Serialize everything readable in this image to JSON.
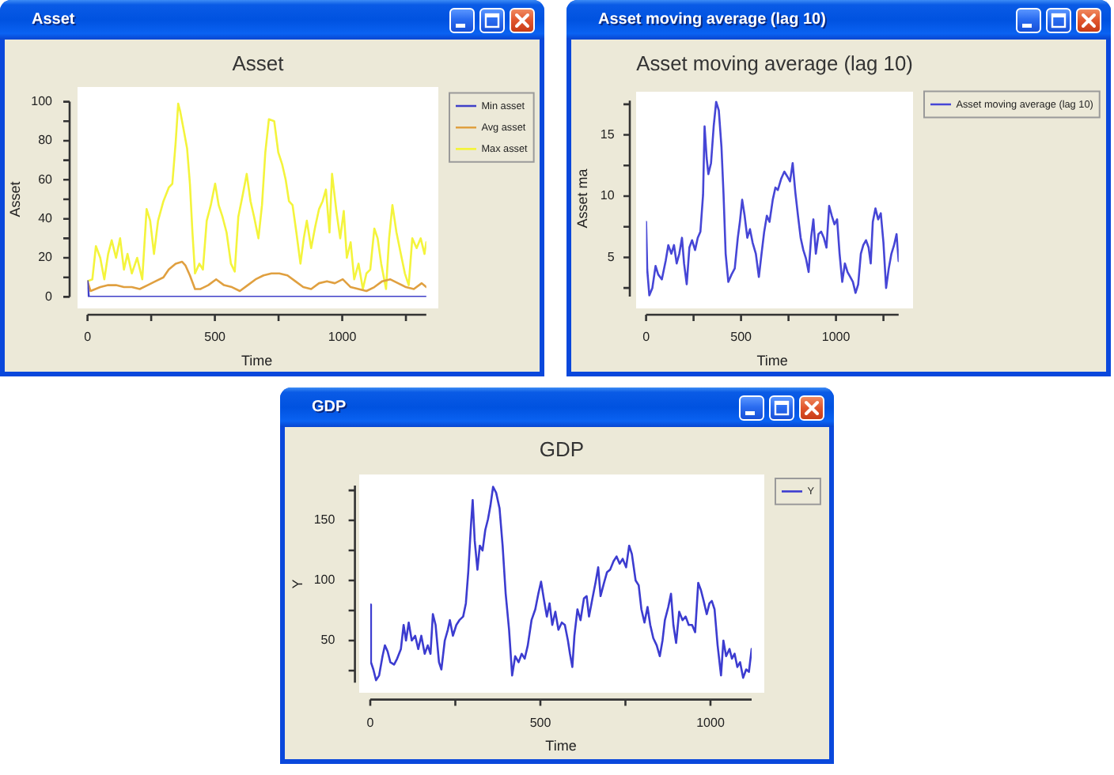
{
  "chart_data": [
    {
      "type": "line",
      "title": "Asset",
      "xlabel": "Time",
      "ylabel": "Asset",
      "xlim": [
        0,
        1330
      ],
      "xticks": [
        0,
        {
          "value": 250,
          "label": null
        },
        500,
        {
          "value": 750,
          "label": null
        },
        1000,
        {
          "value": 1250,
          "label": null
        }
      ],
      "ylim": [
        0,
        100
      ],
      "yticks": [
        0,
        {
          "value": 10,
          "label": null
        },
        20,
        {
          "value": 30,
          "label": null
        },
        40,
        {
          "value": 50,
          "label": null
        },
        60,
        {
          "value": 70,
          "label": null
        },
        80,
        {
          "value": 90,
          "label": null
        },
        100
      ],
      "series": [
        {
          "name": "Min asset",
          "color": "#4040c8",
          "x": [
            0,
            5,
            1330
          ],
          "values": [
            8,
            0,
            0
          ]
        },
        {
          "name": "Avg asset",
          "color": "#e0a040",
          "x": [
            0,
            12,
            50,
            81,
            112,
            143,
            174,
            205,
            236,
            267,
            298,
            319,
            346,
            371,
            385,
            402,
            422,
            443,
            474,
            505,
            536,
            567,
            598,
            629,
            660,
            691,
            722,
            753,
            785,
            816,
            847,
            878,
            909,
            940,
            971,
            1002,
            1033,
            1064,
            1095,
            1126,
            1157,
            1188,
            1219,
            1250,
            1281,
            1312,
            1330
          ],
          "values": [
            8,
            3,
            5,
            6,
            6,
            5,
            5,
            4,
            6,
            8,
            10,
            14,
            17,
            18,
            16,
            11,
            4,
            4,
            6,
            9,
            6,
            5,
            3,
            6,
            9,
            11,
            12,
            12,
            11,
            8,
            5,
            4,
            7,
            8,
            7,
            9,
            5,
            4,
            3,
            5,
            8,
            9,
            7,
            5,
            4,
            7,
            5
          ]
        },
        {
          "name": "Max asset",
          "color": "#f4f43c",
          "x": [
            0,
            19,
            33,
            50,
            66,
            81,
            95,
            112,
            128,
            143,
            157,
            174,
            195,
            215,
            232,
            246,
            261,
            277,
            298,
            319,
            333,
            346,
            356,
            364,
            377,
            391,
            402,
            412,
            422,
            439,
            453,
            468,
            484,
            501,
            515,
            530,
            546,
            563,
            578,
            592,
            609,
            625,
            640,
            654,
            671,
            685,
            698,
            712,
            733,
            749,
            764,
            778,
            791,
            805,
            820,
            836,
            849,
            861,
            878,
            894,
            909,
            923,
            936,
            950,
            960,
            977,
            992,
            1006,
            1018,
            1033,
            1047,
            1064,
            1081,
            1095,
            1110,
            1126,
            1139,
            1153,
            1172,
            1184,
            1197,
            1213,
            1230,
            1246,
            1261,
            1275,
            1292,
            1308,
            1323,
            1330
          ],
          "values": [
            8,
            9,
            26,
            20,
            9,
            22,
            29,
            20,
            30,
            14,
            22,
            12,
            20,
            9,
            45,
            39,
            22,
            39,
            49,
            56,
            58,
            79,
            99,
            95,
            86,
            76,
            58,
            33,
            12,
            17,
            14,
            39,
            47,
            58,
            47,
            41,
            33,
            17,
            13,
            41,
            52,
            63,
            49,
            41,
            30,
            47,
            74,
            91,
            90,
            74,
            68,
            60,
            49,
            47,
            33,
            17,
            30,
            39,
            25,
            36,
            45,
            49,
            55,
            33,
            63,
            44,
            30,
            44,
            20,
            28,
            9,
            17,
            4,
            12,
            14,
            35,
            30,
            17,
            4,
            30,
            47,
            33,
            22,
            12,
            6,
            30,
            25,
            30,
            22,
            28
          ]
        }
      ],
      "legend": "right",
      "grid": false,
      "marker": "none"
    },
    {
      "type": "line",
      "title": "Asset moving average (lag 10)",
      "xlabel": "Time",
      "ylabel": "Asset ma",
      "xlim": [
        0,
        1330
      ],
      "xticks": [
        0,
        {
          "value": 250,
          "label": null
        },
        500,
        {
          "value": 750,
          "label": null
        },
        1000,
        {
          "value": 1250,
          "label": null
        }
      ],
      "ylim": [
        1.8,
        17.8
      ],
      "yticks": [
        {
          "value": 2.5,
          "label": null
        },
        5,
        {
          "value": 7.5,
          "label": null
        },
        10,
        {
          "value": 12.5,
          "label": null
        },
        15,
        {
          "value": 17.5,
          "label": null
        }
      ],
      "series": [
        {
          "name": "Asset moving average (lag 10)",
          "color": "#4646d6",
          "x": [
            0,
            6,
            17,
            33,
            50,
            64,
            83,
            103,
            117,
            133,
            147,
            161,
            175,
            189,
            200,
            214,
            228,
            242,
            258,
            272,
            286,
            300,
            308,
            319,
            328,
            342,
            356,
            369,
            383,
            397,
            408,
            419,
            433,
            450,
            467,
            483,
            494,
            506,
            519,
            533,
            547,
            561,
            578,
            594,
            608,
            622,
            636,
            650,
            667,
            681,
            694,
            711,
            728,
            744,
            758,
            772,
            786,
            800,
            814,
            828,
            842,
            856,
            869,
            881,
            894,
            908,
            922,
            936,
            950,
            964,
            978,
            992,
            1006,
            1019,
            1033,
            1047,
            1061,
            1075,
            1089,
            1103,
            1117,
            1131,
            1144,
            1158,
            1172,
            1183,
            1194,
            1208,
            1222,
            1236,
            1250,
            1264,
            1278,
            1292,
            1306,
            1319,
            1330
          ],
          "values": [
            7.9,
            4,
            1.9,
            2.5,
            4.3,
            3.6,
            3.2,
            4.7,
            6,
            5.3,
            6,
            4.5,
            5.3,
            6.6,
            4.5,
            2.8,
            5.8,
            6.4,
            5.6,
            6.6,
            7.1,
            10.1,
            15.7,
            13.1,
            11.8,
            12.7,
            15.7,
            17.7,
            17,
            14,
            10.1,
            5.3,
            3,
            3.6,
            4.1,
            6.6,
            7.9,
            9.7,
            8.4,
            6.6,
            7.3,
            6.2,
            5.3,
            3.4,
            5.3,
            7.1,
            8.4,
            7.9,
            9.7,
            10.7,
            10.5,
            11.4,
            12,
            11.6,
            11.2,
            12.7,
            10.3,
            8.4,
            6.6,
            5.6,
            4.9,
            3.8,
            6.6,
            8.1,
            5.3,
            6.9,
            7.1,
            6.6,
            5.8,
            9.2,
            8.4,
            7.7,
            8.1,
            5.3,
            3,
            4.5,
            3.8,
            3.4,
            3,
            2.1,
            2.8,
            5.3,
            6,
            6.4,
            5.8,
            4.5,
            7.9,
            9,
            8.1,
            8.6,
            6.2,
            2.5,
            4.1,
            5.3,
            6,
            6.9,
            4.7
          ]
        }
      ],
      "legend": "right",
      "grid": false,
      "marker": "none"
    },
    {
      "type": "line",
      "title": "GDP",
      "xlabel": "Time",
      "ylabel": "Y",
      "xlim": [
        0,
        1121
      ],
      "xticks": [
        0,
        {
          "value": 250,
          "label": null
        },
        500,
        {
          "value": 750,
          "label": null
        },
        1000
      ],
      "ylim": [
        15,
        179
      ],
      "yticks": [
        {
          "value": 25,
          "label": null
        },
        50,
        {
          "value": 75,
          "label": null
        },
        100,
        {
          "value": 125,
          "label": null
        },
        150,
        {
          "value": 175,
          "label": null
        }
      ],
      "series": [
        {
          "name": "Y",
          "color": "#3c3cd0",
          "x": [
            0,
            2,
            9,
            17,
            26,
            36,
            43,
            51,
            59,
            70,
            79,
            90,
            98,
            105,
            113,
            122,
            132,
            141,
            150,
            160,
            169,
            177,
            184,
            192,
            202,
            209,
            219,
            228,
            234,
            243,
            253,
            262,
            273,
            281,
            288,
            296,
            301,
            307,
            315,
            322,
            330,
            338,
            346,
            353,
            361,
            370,
            380,
            389,
            398,
            408,
            417,
            426,
            436,
            445,
            454,
            463,
            474,
            485,
            494,
            502,
            510,
            519,
            527,
            535,
            544,
            553,
            563,
            572,
            581,
            587,
            594,
            600,
            609,
            618,
            628,
            636,
            643,
            653,
            662,
            670,
            677,
            687,
            696,
            705,
            715,
            724,
            733,
            742,
            752,
            761,
            769,
            780,
            789,
            797,
            806,
            815,
            823,
            832,
            842,
            851,
            859,
            866,
            876,
            884,
            891,
            899,
            908,
            918,
            927,
            936,
            946,
            955,
            964,
            972,
            980,
            989,
            997,
            1004,
            1012,
            1021,
            1031,
            1038,
            1046,
            1056,
            1063,
            1071,
            1079,
            1087,
            1096,
            1105,
            1113,
            1121
          ],
          "values": [
            80,
            32,
            26,
            17,
            21,
            37,
            46,
            41,
            32,
            30,
            35,
            43,
            63,
            50,
            65,
            50,
            54,
            43,
            54,
            39,
            46,
            39,
            72,
            63,
            32,
            26,
            50,
            59,
            67,
            54,
            63,
            67,
            70,
            81,
            107,
            146,
            167,
            133,
            109,
            129,
            125,
            142,
            151,
            162,
            178,
            173,
            160,
            129,
            89,
            59,
            21,
            37,
            32,
            39,
            35,
            46,
            67,
            76,
            89,
            99,
            85,
            70,
            81,
            63,
            74,
            59,
            65,
            63,
            50,
            39,
            28,
            54,
            76,
            67,
            85,
            87,
            70,
            85,
            98,
            111,
            87,
            98,
            107,
            109,
            116,
            120,
            114,
            118,
            111,
            129,
            122,
            100,
            96,
            76,
            65,
            78,
            63,
            52,
            46,
            37,
            50,
            67,
            78,
            89,
            63,
            48,
            74,
            67,
            70,
            63,
            63,
            57,
            98,
            92,
            83,
            72,
            81,
            83,
            76,
            46,
            21,
            50,
            37,
            43,
            35,
            39,
            28,
            32,
            19,
            26,
            24,
            43
          ]
        }
      ],
      "legend": "right",
      "grid": false,
      "marker": "none"
    }
  ]
}
